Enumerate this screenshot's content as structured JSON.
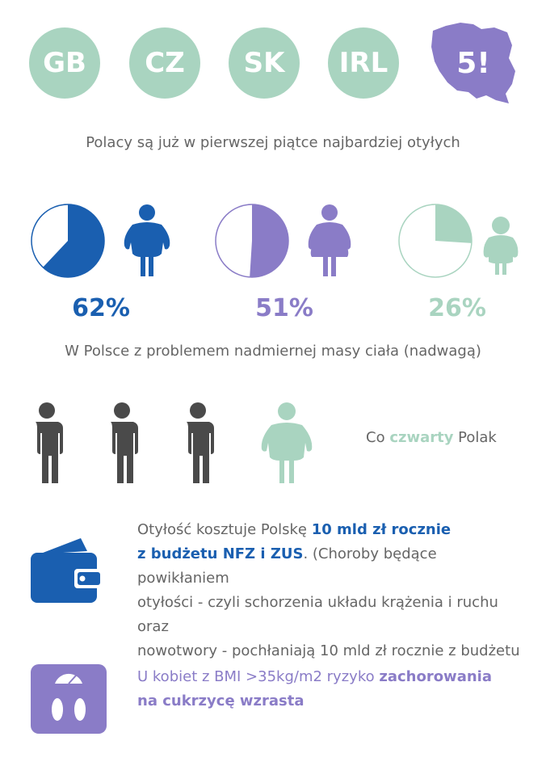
{
  "countries": [
    "GB",
    "CZ",
    "SK",
    "IRL"
  ],
  "poland_rank": "5!",
  "caption_top": "Polacy są już w pierwszej piątce najbardziej otyłych",
  "stats": [
    {
      "percent_label": "62%",
      "value": 62,
      "color": "#1a5fb0",
      "figure": "man-obese-icon"
    },
    {
      "percent_label": "51%",
      "value": 51,
      "color": "#8a7cc7",
      "figure": "woman-obese-icon"
    },
    {
      "percent_label": "26%",
      "value": 26,
      "color": "#a9d4c0",
      "figure": "child-obese-icon"
    }
  ],
  "caption_mid": "W Polsce z problemem nadmiernej masy ciała (nadwagą)",
  "quarter": {
    "pre": "Co ",
    "highlight": "czwarty",
    "post": " Polak"
  },
  "cost": {
    "part1": "Otyłość kosztuje Polskę ",
    "bold1": "10 mld zł rocznie",
    "bold2": "z budżetu NFZ i ZUS",
    "part2": ". (Choroby będące powikłaniem",
    "line3": "otyłości - czyli schorzenia układu krążenia i ruchu oraz",
    "line4": "nowotwory - pochłaniają 10 mld zł rocznie z budżetu"
  },
  "bmi": {
    "part1": "U kobiet z BMI >35kg/m2 ryzyko ",
    "bold1": "zachorowania",
    "bold2": "na cukrzycę wzrasta"
  },
  "colors": {
    "green": "#a9d4c0",
    "blue": "#1a5fb0",
    "purple": "#8a7cc7",
    "gray": "#4a4a4a"
  }
}
